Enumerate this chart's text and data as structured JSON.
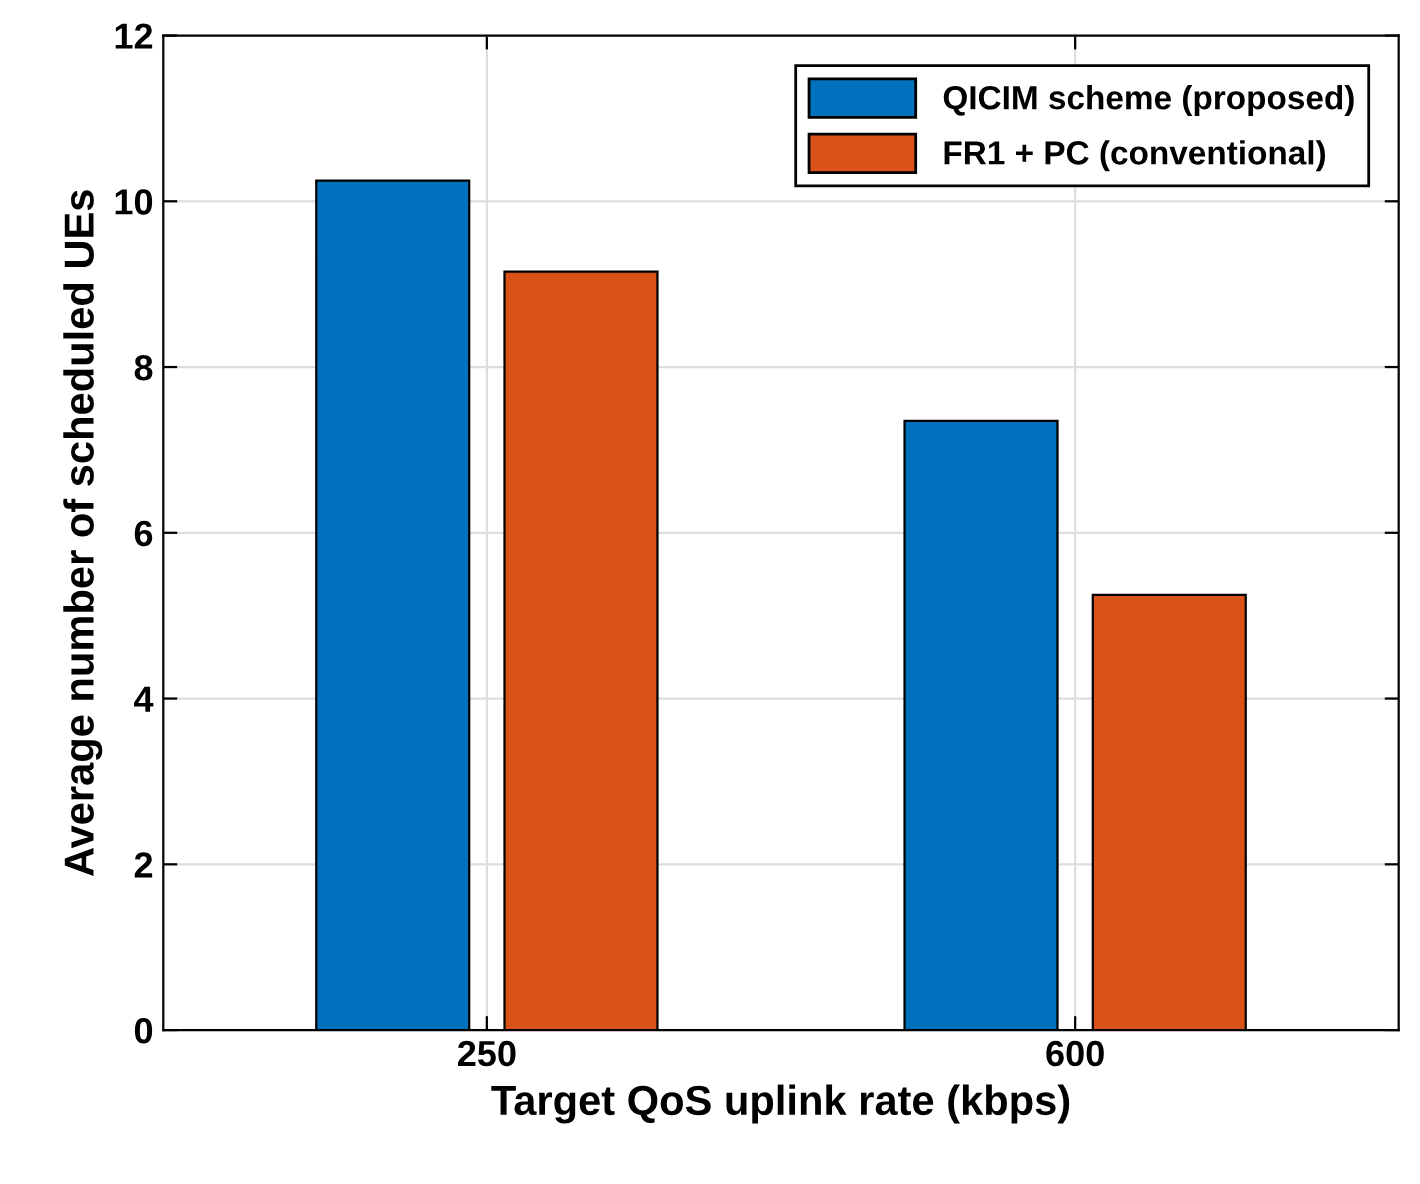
{
  "chart_data": {
    "type": "bar",
    "xlabel": "Target QoS uplink rate (kbps)",
    "ylabel": "Average number of scheduled UEs",
    "categories": [
      "250",
      "600"
    ],
    "series": [
      {
        "name": "QICIM scheme (proposed)",
        "color": "#0072bd",
        "values": [
          10.25,
          7.35
        ]
      },
      {
        "name": "FR1 + PC (conventional)",
        "color": "#d95319",
        "values": [
          9.15,
          5.25
        ]
      }
    ],
    "ylim": [
      0,
      12
    ],
    "yticks": [
      0,
      2,
      4,
      6,
      8,
      10,
      12
    ],
    "grid": true,
    "legend": "top right"
  }
}
